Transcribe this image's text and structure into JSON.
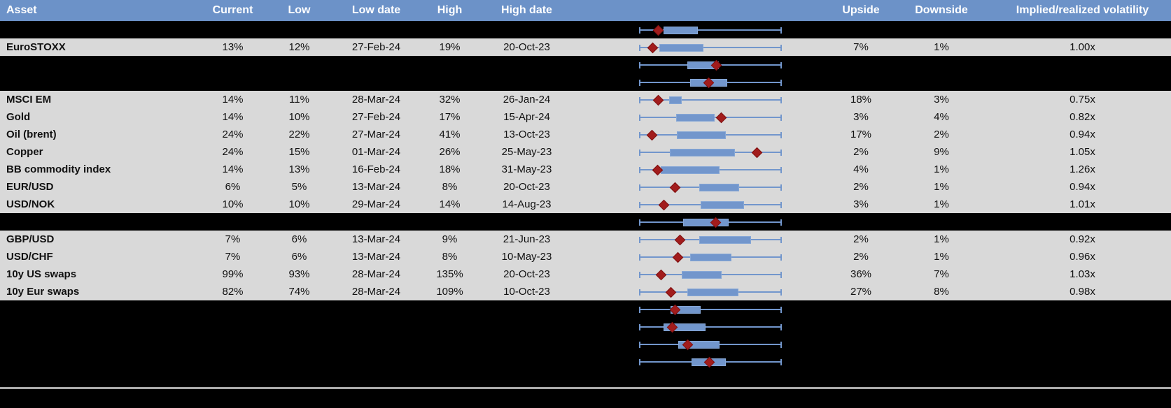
{
  "colors": {
    "header_bg": "#6C92C8",
    "header_text": "#FFFFFF",
    "row_gray": "#D9D9D9",
    "row_black": "#000000",
    "text": "#111111",
    "plot_blue": "#7296CC",
    "plot_box_border": "#86A7D6",
    "marker_red": "#A21C1C",
    "marker_border": "#7E1212",
    "divider_gray": "#ABABAB"
  },
  "header": {
    "columns": [
      "Asset",
      "Current",
      "Low",
      "Low date",
      "High",
      "High date",
      "",
      "Upside",
      "Downside",
      "Implied/realized volatility"
    ]
  },
  "chart_data": {
    "type": "box-whisker-sparklines",
    "note": "Each row shows a horizontal whisker spanning the low-high 1y volatility range, a blue box for the inner range and a red diamond at the current level; positions stored as fractions 0-1 of the whisker span."
  },
  "rows": [
    {
      "type": "chart_only",
      "asset": "",
      "current": "",
      "low": "",
      "low_date": "",
      "high": "",
      "high_date": "",
      "upside": "",
      "downside": "",
      "iv_rv": "",
      "chart": {
        "box": [
          0.17,
          0.41
        ],
        "marker": 0.132
      }
    },
    {
      "type": "data",
      "asset": "EuroSTOXX",
      "current": "13%",
      "low": "12%",
      "low_date": "27-Feb-24",
      "high": "19%",
      "high_date": "20-Oct-23",
      "upside": "7%",
      "downside": "1%",
      "iv_rv": "1.00x",
      "chart": {
        "box": [
          0.14,
          0.45
        ],
        "marker": 0.093
      }
    },
    {
      "type": "chart_only",
      "asset": "",
      "current": "",
      "low": "",
      "low_date": "",
      "high": "",
      "high_date": "",
      "upside": "",
      "downside": "",
      "iv_rv": "",
      "chart": {
        "box": [
          0.34,
          0.56
        ],
        "marker": 0.54
      }
    },
    {
      "type": "chart_only",
      "asset": "",
      "current": "",
      "low": "",
      "low_date": "",
      "high": "",
      "high_date": "",
      "upside": "",
      "downside": "",
      "iv_rv": "",
      "chart": {
        "box": [
          0.36,
          0.62
        ],
        "marker": 0.485
      }
    },
    {
      "type": "data",
      "asset": "MSCI EM",
      "current": "14%",
      "low": "11%",
      "low_date": "28-Mar-24",
      "high": "32%",
      "high_date": "26-Jan-24",
      "upside": "18%",
      "downside": "3%",
      "iv_rv": "0.75x",
      "chart": {
        "box": [
          0.21,
          0.3
        ],
        "marker": 0.13
      }
    },
    {
      "type": "data",
      "asset": "Gold",
      "current": "14%",
      "low": "10%",
      "low_date": "27-Feb-24",
      "high": "17%",
      "high_date": "15-Apr-24",
      "upside": "3%",
      "downside": "4%",
      "iv_rv": "0.82x",
      "chart": {
        "box": [
          0.26,
          0.53
        ],
        "marker": 0.575
      }
    },
    {
      "type": "data",
      "asset": "Oil (brent)",
      "current": "24%",
      "low": "22%",
      "low_date": "27-Mar-24",
      "high": "41%",
      "high_date": "13-Oct-23",
      "upside": "17%",
      "downside": "2%",
      "iv_rv": "0.94x",
      "chart": {
        "box": [
          0.265,
          0.61
        ],
        "marker": 0.09
      }
    },
    {
      "type": "data",
      "asset": "Copper",
      "current": "24%",
      "low": "15%",
      "low_date": "01-Mar-24",
      "high": "26%",
      "high_date": "25-May-23",
      "upside": "2%",
      "downside": "9%",
      "iv_rv": "1.05x",
      "chart": {
        "box": [
          0.215,
          0.67
        ],
        "marker": 0.825
      }
    },
    {
      "type": "data",
      "asset": "BB commodity index",
      "current": "14%",
      "low": "13%",
      "low_date": "16-Feb-24",
      "high": "18%",
      "high_date": "31-May-23",
      "upside": "4%",
      "downside": "1%",
      "iv_rv": "1.26x",
      "chart": {
        "box": [
          0.15,
          0.56
        ],
        "marker": 0.125
      }
    },
    {
      "type": "data",
      "asset": "EUR/USD",
      "current": "6%",
      "low": "5%",
      "low_date": "13-Mar-24",
      "high": "8%",
      "high_date": "20-Oct-23",
      "upside": "2%",
      "downside": "1%",
      "iv_rv": "0.94x",
      "chart": {
        "box": [
          0.42,
          0.7
        ],
        "marker": 0.25
      }
    },
    {
      "type": "data",
      "asset": "USD/NOK",
      "current": "10%",
      "low": "10%",
      "low_date": "29-Mar-24",
      "high": "14%",
      "high_date": "14-Aug-23",
      "upside": "3%",
      "downside": "1%",
      "iv_rv": "1.01x",
      "chart": {
        "box": [
          0.43,
          0.735
        ],
        "marker": 0.17
      }
    },
    {
      "type": "chart_only",
      "asset": "",
      "current": "",
      "low": "",
      "low_date": "",
      "high": "",
      "high_date": "",
      "upside": "",
      "downside": "",
      "iv_rv": "",
      "chart": {
        "box": [
          0.31,
          0.63
        ],
        "marker": 0.535
      }
    },
    {
      "type": "data",
      "asset": "GBP/USD",
      "current": "7%",
      "low": "6%",
      "low_date": "13-Mar-24",
      "high": "9%",
      "high_date": "21-Jun-23",
      "upside": "2%",
      "downside": "1%",
      "iv_rv": "0.92x",
      "chart": {
        "box": [
          0.42,
          0.785
        ],
        "marker": 0.285
      }
    },
    {
      "type": "data",
      "asset": "USD/CHF",
      "current": "7%",
      "low": "6%",
      "low_date": "13-Mar-24",
      "high": "8%",
      "high_date": "10-May-23",
      "upside": "2%",
      "downside": "1%",
      "iv_rv": "0.96x",
      "chart": {
        "box": [
          0.36,
          0.65
        ],
        "marker": 0.27
      }
    },
    {
      "type": "data",
      "asset": "10y US swaps",
      "current": "99%",
      "low": "93%",
      "low_date": "28-Mar-24",
      "high": "135%",
      "high_date": "20-Oct-23",
      "upside": "36%",
      "downside": "7%",
      "iv_rv": "1.03x",
      "chart": {
        "box": [
          0.3,
          0.58
        ],
        "marker": 0.15
      }
    },
    {
      "type": "data",
      "asset": "10y Eur swaps",
      "current": "82%",
      "low": "74%",
      "low_date": "28-Mar-24",
      "high": "109%",
      "high_date": "10-Oct-23",
      "upside": "27%",
      "downside": "8%",
      "iv_rv": "0.98x",
      "chart": {
        "box": [
          0.34,
          0.7
        ],
        "marker": 0.22
      }
    },
    {
      "type": "chart_only",
      "asset": "",
      "current": "",
      "low": "",
      "low_date": "",
      "high": "",
      "high_date": "",
      "upside": "",
      "downside": "",
      "iv_rv": "",
      "chart": {
        "box": [
          0.22,
          0.43
        ],
        "marker": 0.25
      }
    },
    {
      "type": "chart_only",
      "asset": "",
      "current": "",
      "low": "",
      "low_date": "",
      "high": "",
      "high_date": "",
      "upside": "",
      "downside": "",
      "iv_rv": "",
      "chart": {
        "box": [
          0.17,
          0.465
        ],
        "marker": 0.23
      }
    },
    {
      "type": "chart_only",
      "asset": "",
      "current": "",
      "low": "",
      "low_date": "",
      "high": "",
      "high_date": "",
      "upside": "",
      "downside": "",
      "iv_rv": "",
      "chart": {
        "box": [
          0.275,
          0.565
        ],
        "marker": 0.34
      }
    },
    {
      "type": "chart_only",
      "asset": "",
      "current": "",
      "low": "",
      "low_date": "",
      "high": "",
      "high_date": "",
      "upside": "",
      "downside": "",
      "iv_rv": "",
      "chart": {
        "box": [
          0.37,
          0.61
        ],
        "marker": 0.49
      }
    }
  ]
}
